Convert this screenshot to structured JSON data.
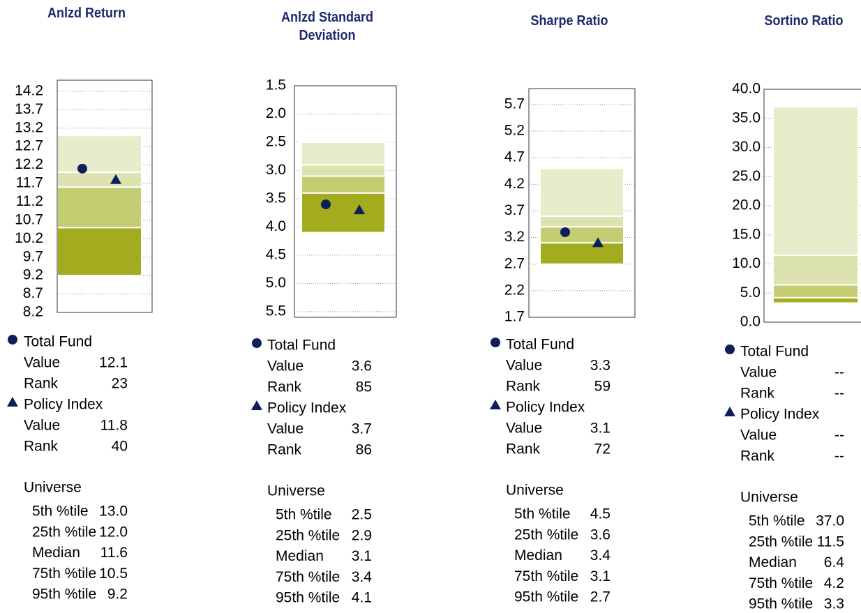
{
  "chart_data": [
    {
      "type": "percentile",
      "title": "Anlzd Return",
      "ylim": [
        8.2,
        14.5
      ],
      "inverted": false,
      "grid": true,
      "yticks": [
        14.2,
        13.7,
        13.2,
        12.7,
        12.2,
        11.7,
        11.2,
        10.7,
        10.2,
        9.7,
        9.2,
        8.7,
        8.2
      ],
      "band_colors": [
        "#e8ecca",
        "#dde3b0",
        "#c5cd72",
        "#a3ab1f"
      ],
      "points": [
        {
          "name": "Total Fund",
          "marker": "circle",
          "color": "#0d1f5c",
          "value_text": "Value",
          "value": 12.1,
          "rank_text": "Rank",
          "rank": 23
        },
        {
          "name": "Policy Index",
          "marker": "triangle",
          "color": "#0d1f5c",
          "value_text": "Value",
          "value": 11.8,
          "rank_text": "Rank",
          "rank": 40
        }
      ],
      "universe": {
        "name": "Universe",
        "rows": [
          {
            "label": "5th %tile",
            "value": 13,
            "value_label": "13.0"
          },
          {
            "label": "25th %tile",
            "value": 12,
            "value_label": "12.0"
          },
          {
            "label": "Median",
            "value": 11.6
          },
          {
            "label": "75th %tile",
            "value": 10.5
          },
          {
            "label": "95th %tile",
            "value": 9.2
          }
        ]
      }
    },
    {
      "type": "percentile",
      "title": "Anlzd Standard Deviation",
      "ylim": [
        1.5,
        5.6
      ],
      "inverted": true,
      "grid": true,
      "yticks": [
        1.5,
        {
          "value": 2,
          "label": "2.0"
        },
        2.5,
        {
          "value": 3,
          "label": "3.0"
        },
        3.5,
        {
          "value": 4,
          "label": "4.0"
        },
        4.5,
        {
          "value": 5,
          "label": "5.0"
        },
        5.5
      ],
      "band_colors": [
        "#e8ecca",
        "#dde3b0",
        "#c5cd72",
        "#a3ab1f"
      ],
      "points": [
        {
          "name": "Total Fund",
          "marker": "circle",
          "color": "#0d1f5c",
          "value_text": "Value",
          "value": 3.6,
          "rank_text": "Rank",
          "rank": 85
        },
        {
          "name": "Policy Index",
          "marker": "triangle",
          "color": "#0d1f5c",
          "value_text": "Value",
          "value": 3.7,
          "rank_text": "Rank",
          "rank": 86
        }
      ],
      "universe": {
        "name": "Universe",
        "rows": [
          {
            "label": "5th %tile",
            "value": 2.5
          },
          {
            "label": "25th %tile",
            "value": 2.9
          },
          {
            "label": "Median",
            "value": 3.1
          },
          {
            "label": "75th %tile",
            "value": 3.4
          },
          {
            "label": "95th %tile",
            "value": 4.1
          }
        ]
      }
    },
    {
      "type": "percentile",
      "title": "Sharpe Ratio",
      "ylim": [
        1.7,
        6.0
      ],
      "inverted": false,
      "grid": true,
      "yticks": [
        5.7,
        5.2,
        4.7,
        4.2,
        3.7,
        3.2,
        2.7,
        2.2,
        1.7
      ],
      "band_colors": [
        "#e8ecca",
        "#dde3b0",
        "#c5cd72",
        "#a3ab1f"
      ],
      "points": [
        {
          "name": "Total Fund",
          "marker": "circle",
          "color": "#0d1f5c",
          "value_text": "Value",
          "value": 3.3,
          "rank_text": "Rank",
          "rank": 59
        },
        {
          "name": "Policy Index",
          "marker": "triangle",
          "color": "#0d1f5c",
          "value_text": "Value",
          "value": 3.1,
          "rank_text": "Rank",
          "rank": 72
        }
      ],
      "universe": {
        "name": "Universe",
        "rows": [
          {
            "label": "5th %tile",
            "value": 4.5
          },
          {
            "label": "25th %tile",
            "value": 3.6
          },
          {
            "label": "Median",
            "value": 3.4
          },
          {
            "label": "75th %tile",
            "value": 3.1
          },
          {
            "label": "95th %tile",
            "value": 2.7
          }
        ]
      }
    },
    {
      "type": "percentile",
      "title": "Sortino Ratio",
      "ylim": [
        0,
        40
      ],
      "inverted": false,
      "grid": true,
      "yticks": [
        {
          "value": 40,
          "label": "40.0"
        },
        {
          "value": 35,
          "label": "35.0"
        },
        {
          "value": 30,
          "label": "30.0"
        },
        {
          "value": 25,
          "label": "25.0"
        },
        {
          "value": 20,
          "label": "20.0"
        },
        {
          "value": 15,
          "label": "15.0"
        },
        {
          "value": 10,
          "label": "10.0"
        },
        {
          "value": 5,
          "label": "5.0"
        },
        {
          "value": 0,
          "label": "0.0"
        }
      ],
      "band_colors": [
        "#e8ecca",
        "#dde3b0",
        "#c5cd72",
        "#a3ab1f"
      ],
      "points": [
        {
          "name": "Total Fund",
          "marker": "circle",
          "color": "#0d1f5c",
          "value_text": "Value",
          "value": null,
          "value_label": "--",
          "rank_text": "Rank",
          "rank": null,
          "rank_label": "--"
        },
        {
          "name": "Policy Index",
          "marker": "triangle",
          "color": "#0d1f5c",
          "value_text": "Value",
          "value": null,
          "value_label": "--",
          "rank_text": "Rank",
          "rank": null,
          "rank_label": "--"
        }
      ],
      "universe": {
        "name": "Universe",
        "rows": [
          {
            "label": "5th %tile",
            "value": 37,
            "value_label": "37.0"
          },
          {
            "label": "25th %tile",
            "value": 11.5
          },
          {
            "label": "Median",
            "value": 6.4
          },
          {
            "label": "75th %tile",
            "value": 4.2
          },
          {
            "label": "95th %tile",
            "value": 3.3
          }
        ]
      }
    }
  ]
}
